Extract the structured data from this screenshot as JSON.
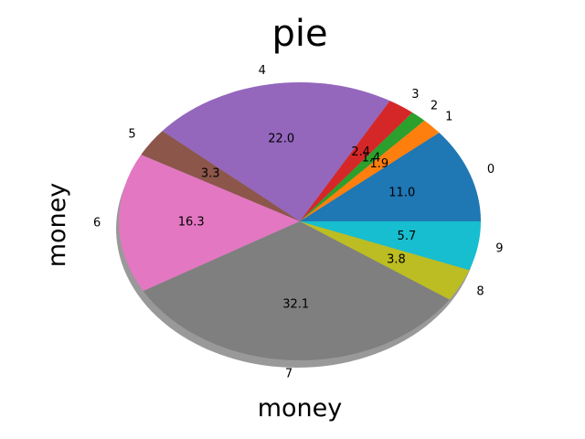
{
  "chart_data": {
    "type": "pie",
    "title": "pie",
    "xlabel": "money",
    "ylabel": "money",
    "categories": [
      "0",
      "1",
      "2",
      "3",
      "4",
      "5",
      "6",
      "7",
      "8",
      "9"
    ],
    "values": [
      11.0,
      1.9,
      1.4,
      2.4,
      22.0,
      3.3,
      16.3,
      32.1,
      3.8,
      5.7
    ],
    "value_labels": [
      "11.0",
      "1.9",
      "1.4",
      "2.4",
      "22.0",
      "3.3",
      "16.3",
      "32.1",
      "3.8",
      "5.7"
    ],
    "colors": [
      "#1f77b4",
      "#ff7f0e",
      "#2ca02c",
      "#d62728",
      "#9467bd",
      "#8c564b",
      "#e377c2",
      "#7f7f7f",
      "#bcbd22",
      "#17becf"
    ],
    "start_angle": 0,
    "direction": "counterclockwise",
    "shadow": true
  }
}
